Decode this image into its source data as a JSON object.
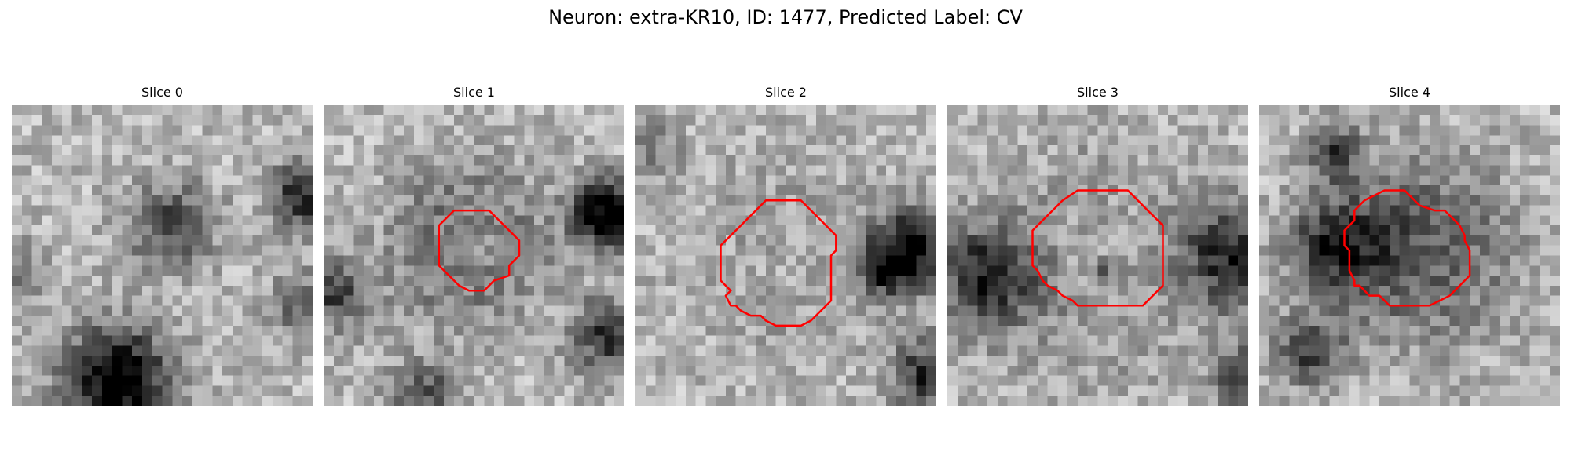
{
  "figure": {
    "title": "Neuron: extra-KR10, ID: 1477, Predicted Label: CV"
  },
  "colors": {
    "contour": "#ff0000",
    "background": "#ffffff"
  },
  "grid_size": 30,
  "panels": [
    {
      "title": "Slice 0",
      "seed": 11,
      "blobs": [
        {
          "cx": 16.0,
          "cy": 12.0,
          "r": 3.0,
          "s": -0.45
        },
        {
          "cx": 10.5,
          "cy": 27.5,
          "r": 3.8,
          "s": -0.8
        },
        {
          "cx": 29.0,
          "cy": 9.0,
          "r": 2.2,
          "s": -0.6
        },
        {
          "cx": 29.5,
          "cy": 20.0,
          "r": 2.5,
          "s": -0.35
        },
        {
          "cx": 1.0,
          "cy": 17.0,
          "r": 2.2,
          "s": -0.25
        }
      ],
      "contour": []
    },
    {
      "title": "Slice 1",
      "seed": 22,
      "blobs": [
        {
          "cx": 14.5,
          "cy": 14.0,
          "r": 4.8,
          "s": -0.5
        },
        {
          "cx": 15.0,
          "cy": 14.0,
          "r": 2.8,
          "s": 0.35
        },
        {
          "cx": 28.5,
          "cy": 11.0,
          "r": 2.5,
          "s": -0.85
        },
        {
          "cx": 28.5,
          "cy": 23.0,
          "r": 2.5,
          "s": -0.55
        },
        {
          "cx": 1.0,
          "cy": 19.0,
          "r": 2.5,
          "s": -0.45
        },
        {
          "cx": 10.0,
          "cy": 29.0,
          "r": 2.5,
          "s": -0.4
        }
      ],
      "contour": [
        [
          13.0,
          10.5
        ],
        [
          16.5,
          10.5
        ],
        [
          18.5,
          12.5
        ],
        [
          19.5,
          13.5
        ],
        [
          19.5,
          15.0
        ],
        [
          18.5,
          16.0
        ],
        [
          18.5,
          17.0
        ],
        [
          17.0,
          17.5
        ],
        [
          16.0,
          18.5
        ],
        [
          14.5,
          18.5
        ],
        [
          13.5,
          18.0
        ],
        [
          12.5,
          17.0
        ],
        [
          11.5,
          16.0
        ],
        [
          11.5,
          12.0
        ]
      ]
    },
    {
      "title": "Slice 2",
      "seed": 33,
      "blobs": [
        {
          "cx": 15.0,
          "cy": 15.5,
          "r": 5.5,
          "s": -0.35
        },
        {
          "cx": 15.0,
          "cy": 15.5,
          "r": 4.5,
          "s": 0.3
        },
        {
          "cx": 28.0,
          "cy": 14.0,
          "r": 3.0,
          "s": -0.6
        },
        {
          "cx": 25.0,
          "cy": 16.5,
          "r": 2.0,
          "s": -0.45
        },
        {
          "cx": 1.5,
          "cy": 4.0,
          "r": 2.0,
          "s": -0.25
        },
        {
          "cx": 29.0,
          "cy": 27.0,
          "r": 2.5,
          "s": -0.55
        }
      ],
      "contour": [
        [
          13.0,
          9.5
        ],
        [
          16.5,
          9.5
        ],
        [
          18.5,
          11.5
        ],
        [
          20.0,
          13.0
        ],
        [
          20.0,
          14.5
        ],
        [
          19.5,
          15.0
        ],
        [
          19.5,
          19.5
        ],
        [
          17.5,
          21.5
        ],
        [
          16.5,
          22.0
        ],
        [
          14.0,
          22.0
        ],
        [
          13.0,
          21.5
        ],
        [
          12.5,
          21.0
        ],
        [
          11.5,
          21.0
        ],
        [
          10.5,
          20.5
        ],
        [
          10.0,
          20.0
        ],
        [
          9.5,
          20.0
        ],
        [
          9.0,
          19.0
        ],
        [
          9.5,
          18.5
        ],
        [
          8.5,
          17.5
        ],
        [
          8.5,
          14.0
        ],
        [
          10.5,
          12.0
        ]
      ]
    },
    {
      "title": "Slice 3",
      "seed": 44,
      "blobs": [
        {
          "cx": 15.0,
          "cy": 15.5,
          "r": 7.0,
          "s": -0.35
        },
        {
          "cx": 15.0,
          "cy": 15.0,
          "r": 5.0,
          "s": 0.3
        },
        {
          "cx": 4.0,
          "cy": 17.0,
          "r": 3.5,
          "s": -0.55
        },
        {
          "cx": 28.5,
          "cy": 15.0,
          "r": 3.5,
          "s": -0.55
        },
        {
          "cx": 15.5,
          "cy": 16.5,
          "r": 0.8,
          "s": -0.3
        },
        {
          "cx": 29.5,
          "cy": 27.0,
          "r": 2.0,
          "s": -0.5
        }
      ],
      "contour": [
        [
          13.0,
          8.5
        ],
        [
          18.0,
          8.5
        ],
        [
          19.5,
          10.0
        ],
        [
          20.0,
          10.5
        ],
        [
          20.5,
          11.0
        ],
        [
          21.0,
          11.5
        ],
        [
          21.5,
          12.0
        ],
        [
          21.5,
          18.0
        ],
        [
          20.0,
          19.5
        ],
        [
          19.5,
          20.0
        ],
        [
          13.0,
          20.0
        ],
        [
          12.5,
          19.5
        ],
        [
          11.5,
          19.0
        ],
        [
          11.0,
          18.5
        ],
        [
          10.0,
          18.0
        ],
        [
          9.5,
          17.5
        ],
        [
          9.0,
          16.5
        ],
        [
          8.5,
          16.0
        ],
        [
          8.5,
          12.5
        ],
        [
          9.5,
          11.5
        ],
        [
          11.0,
          10.0
        ],
        [
          11.5,
          9.5
        ]
      ]
    },
    {
      "title": "Slice 4",
      "seed": 55,
      "blobs": [
        {
          "cx": 16.0,
          "cy": 14.5,
          "r": 6.0,
          "s": -0.45
        },
        {
          "cx": 7.5,
          "cy": 14.0,
          "r": 3.0,
          "s": -0.5
        },
        {
          "cx": 7.5,
          "cy": 5.0,
          "r": 2.0,
          "s": -0.45
        },
        {
          "cx": 5.0,
          "cy": 24.5,
          "r": 2.5,
          "s": -0.45
        },
        {
          "cx": 18.0,
          "cy": 15.0,
          "r": 2.5,
          "s": 0.1
        }
      ],
      "contour": [
        [
          10.5,
          9.5
        ],
        [
          12.5,
          8.5
        ],
        [
          14.5,
          8.5
        ],
        [
          16.0,
          10.0
        ],
        [
          17.5,
          10.5
        ],
        [
          18.5,
          10.5
        ],
        [
          19.5,
          11.5
        ],
        [
          20.0,
          12.0
        ],
        [
          20.5,
          13.0
        ],
        [
          20.5,
          13.5
        ],
        [
          21.0,
          14.5
        ],
        [
          21.0,
          17.0
        ],
        [
          19.5,
          18.5
        ],
        [
          19.0,
          19.0
        ],
        [
          18.0,
          19.5
        ],
        [
          17.0,
          20.0
        ],
        [
          13.0,
          20.0
        ],
        [
          12.0,
          19.0
        ],
        [
          11.0,
          19.0
        ],
        [
          10.0,
          18.0
        ],
        [
          9.5,
          18.0
        ],
        [
          9.5,
          17.5
        ],
        [
          9.0,
          16.5
        ],
        [
          9.0,
          14.5
        ],
        [
          8.5,
          14.0
        ],
        [
          8.5,
          12.5
        ],
        [
          9.5,
          11.5
        ],
        [
          9.5,
          10.5
        ]
      ]
    }
  ]
}
